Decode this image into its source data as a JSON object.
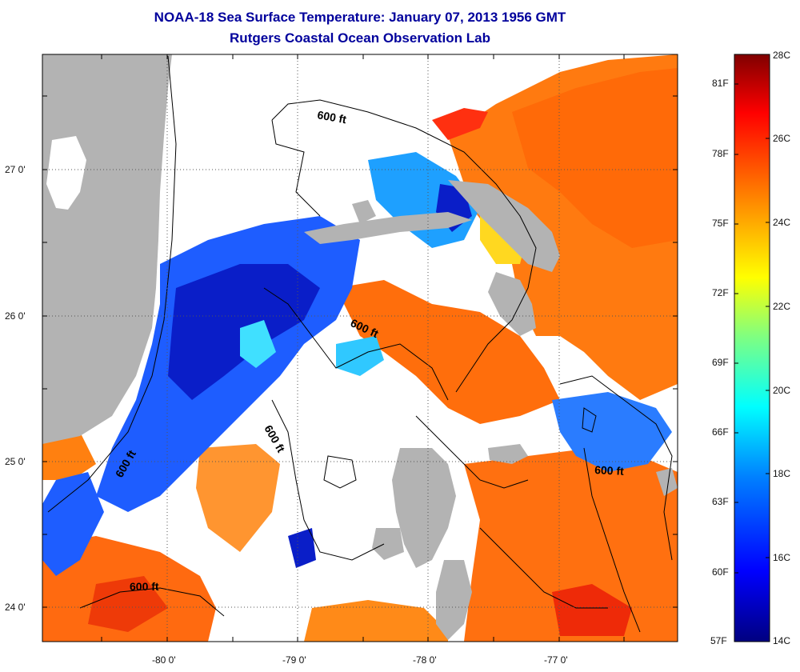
{
  "title": "NOAA-18 Sea Surface Temperature:  January 07, 2013 1956 GMT",
  "subtitle": "Rutgers Coastal Ocean Observation Lab",
  "axes": {
    "lon_labels": [
      "-80 0'",
      "-79 0'",
      "-78 0'",
      "-77 0'"
    ],
    "lat_labels": [
      "27 0'",
      "26 0'",
      "25 0'",
      "24 0'"
    ]
  },
  "contour_labels": [
    "600 ft",
    "600 ft",
    "600 ft",
    "600 ft",
    "600 ft",
    "600 ft"
  ],
  "colorbar": {
    "celsius_labels": [
      "28C",
      "26C",
      "24C",
      "22C",
      "20C",
      "18C",
      "16C",
      "14C"
    ],
    "fahrenheit_labels": [
      "81F",
      "78F",
      "75F",
      "72F",
      "69F",
      "66F",
      "63F",
      "60F",
      "57F"
    ],
    "colors": [
      "#000080",
      "#0000ff",
      "#0080ff",
      "#00ffff",
      "#80ff80",
      "#ffff00",
      "#ff8000",
      "#ff0000",
      "#800000"
    ]
  },
  "colors": {
    "land": "#b3b3b3",
    "ocean_no_data": "#ffffff",
    "title": "#00009c"
  }
}
